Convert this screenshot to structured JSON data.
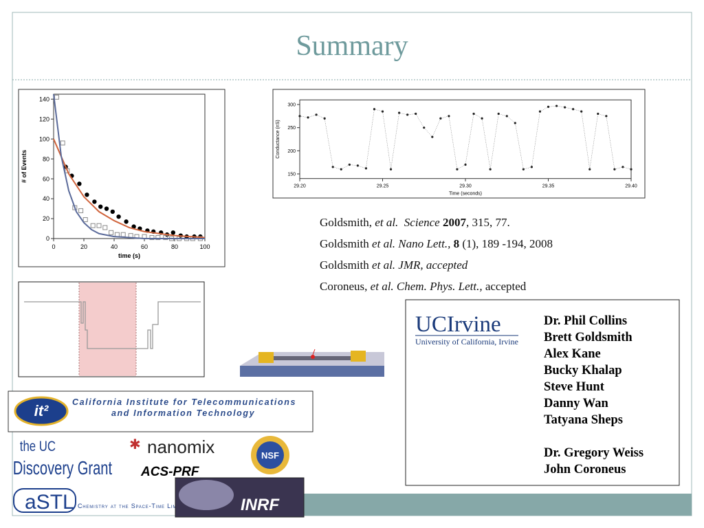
{
  "title": "Summary",
  "decay_plot": {
    "type": "scatter",
    "xlabel": "time (s)",
    "ylabel": "# of Events",
    "xlim": [
      0,
      100
    ],
    "ylim": [
      0,
      145
    ],
    "xticks": [
      0,
      20,
      40,
      60,
      80,
      100
    ],
    "yticks": [
      0,
      20,
      40,
      60,
      80,
      100,
      120,
      140
    ],
    "series": [
      {
        "style": "points",
        "marker": "circle",
        "color": "#000000",
        "x": [
          8,
          12,
          17,
          22,
          27,
          31,
          35,
          39,
          43,
          48,
          53,
          57,
          62,
          66,
          71,
          75,
          79,
          84,
          88,
          93,
          97
        ],
        "values": [
          72,
          63,
          55,
          44,
          37,
          32,
          30,
          27,
          22,
          17,
          12,
          10,
          8,
          7,
          6,
          4,
          6,
          3,
          2,
          2,
          2
        ]
      },
      {
        "style": "points",
        "marker": "square",
        "color": "#8a8a8a",
        "x": [
          2,
          6,
          9,
          14,
          18,
          21,
          26,
          30,
          34,
          38,
          42,
          46,
          51,
          55,
          60,
          65,
          69,
          74,
          78,
          83,
          88,
          92,
          97
        ],
        "values": [
          142,
          96,
          68,
          31,
          28,
          19,
          13,
          13,
          11,
          6,
          4,
          4,
          3,
          2,
          2,
          1,
          1,
          1,
          0,
          0,
          0,
          0,
          0
        ]
      },
      {
        "style": "line",
        "color": "#d0643c",
        "x": [
          0,
          10,
          20,
          30,
          40,
          50,
          60,
          70,
          80,
          90,
          100
        ],
        "values": [
          100,
          65,
          42,
          27,
          18,
          11,
          7,
          5,
          3,
          2,
          1
        ]
      },
      {
        "style": "line",
        "color": "#5a6a9a",
        "x": [
          0,
          5,
          10,
          15,
          20,
          25,
          30,
          40,
          50,
          60,
          80,
          100
        ],
        "values": [
          145,
          83,
          48,
          27,
          16,
          9,
          5,
          2,
          1,
          0,
          0,
          0
        ]
      }
    ]
  },
  "trace_plot": {
    "type": "scatter",
    "xlabel": "Time (seconds)",
    "ylabel": "Conductance (nS)",
    "xlim": [
      29.2,
      29.4
    ],
    "ylim": [
      140,
      310
    ],
    "xticks": [
      {
        "value": 29.2,
        "label": "29.20"
      },
      {
        "value": 29.25,
        "label": "29.25"
      },
      {
        "value": 29.3,
        "label": "29.30"
      },
      {
        "value": 29.35,
        "label": "29.35"
      },
      {
        "value": 29.4,
        "label": "29.40"
      }
    ],
    "yticks": [
      150,
      200,
      250,
      300
    ],
    "series": [
      {
        "style": "points",
        "marker": "dot",
        "color": "#222222",
        "x": [
          29.2,
          29.205,
          29.21,
          29.215,
          29.22,
          29.225,
          29.23,
          29.235,
          29.24,
          29.245,
          29.25,
          29.255,
          29.26,
          29.265,
          29.27,
          29.275,
          29.28,
          29.285,
          29.29,
          29.295,
          29.3,
          29.305,
          29.31,
          29.315,
          29.32,
          29.325,
          29.33,
          29.335,
          29.34,
          29.345,
          29.35,
          29.355,
          29.36,
          29.365,
          29.37,
          29.375,
          29.38,
          29.385,
          29.39,
          29.395,
          29.4
        ],
        "values": [
          275,
          272,
          278,
          270,
          165,
          160,
          170,
          168,
          162,
          290,
          285,
          160,
          282,
          278,
          280,
          250,
          230,
          270,
          275,
          160,
          170,
          280,
          270,
          160,
          280,
          275,
          260,
          160,
          165,
          285,
          295,
          297,
          294,
          290,
          285,
          160,
          280,
          275,
          160,
          165,
          160
        ]
      }
    ]
  },
  "references": [
    [
      {
        "text": "Goldsmith, "
      },
      {
        "text": "et al.",
        "style": "italic"
      },
      {
        "text": "  "
      },
      {
        "text": "Science",
        "style": "italic"
      },
      {
        "text": " "
      },
      {
        "text": "2007",
        "style": "bold"
      },
      {
        "text": ", 315, 77."
      }
    ],
    [
      {
        "text": "Goldsmith "
      },
      {
        "text": "et al. Nano Lett.,",
        "style": "italic"
      },
      {
        "text": " "
      },
      {
        "text": "8",
        "style": "bold"
      },
      {
        "text": " (1), 189 -194, 2008"
      }
    ],
    [
      {
        "text": "Goldsmith "
      },
      {
        "text": "et al. JMR, accepted",
        "style": "italic"
      }
    ],
    [
      {
        "text": "Coroneus, "
      },
      {
        "text": "et al. Chem. Phys. Lett.,",
        "style": "italic"
      },
      {
        "text": " accepted"
      }
    ]
  ],
  "affiliation": {
    "name": "UCIrvine",
    "subtitle": "University of California, Irvine"
  },
  "people": [
    [
      "Dr. Phil Collins",
      "Brett Goldsmith",
      "Alex Kane",
      "Bucky Khalap",
      "Steve Hunt",
      "Danny Wan",
      "Tatyana Sheps"
    ],
    [
      "Dr. Gregory Weiss",
      "John Coroneus"
    ]
  ],
  "sponsors": {
    "calit2_mark": "it²",
    "calit2": [
      "California Institute for Telecommunications",
      "and Information Technology"
    ],
    "uc_discovery": [
      "the UC",
      "Discovery Grant"
    ],
    "nanomix": "nanomix",
    "acs": "ACS-PRF",
    "nsf": "NSF",
    "castl_mark": "aSTL",
    "castl": "Chemistry at the Space-Time Limit",
    "inrf": "INRF"
  }
}
